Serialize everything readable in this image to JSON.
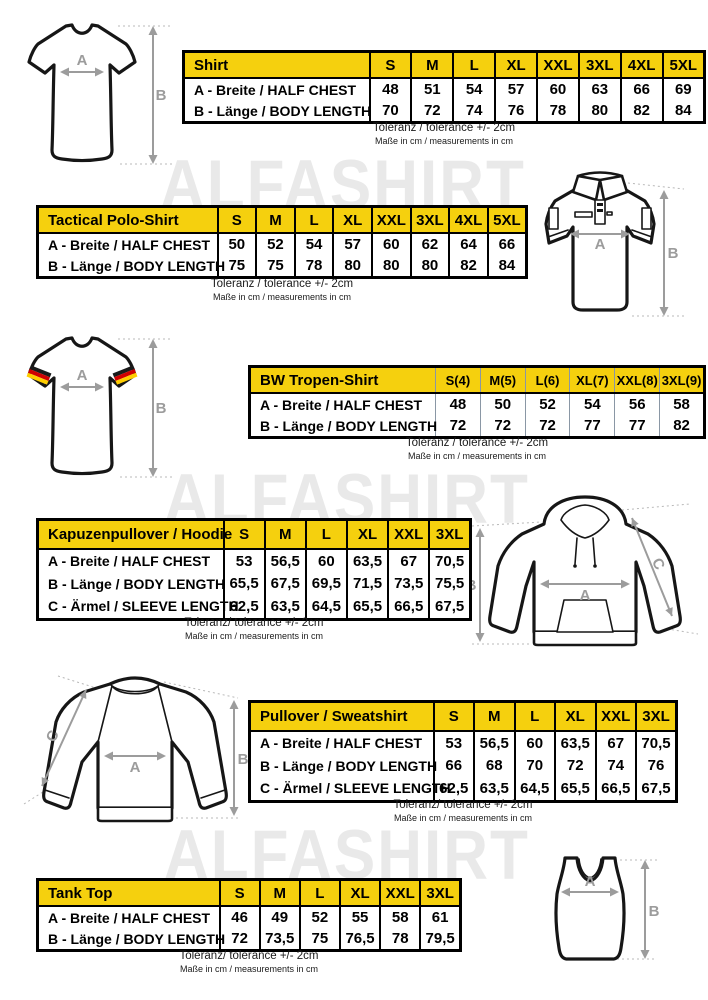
{
  "page": {
    "watermark": "ALFASHIRT"
  },
  "colors": {
    "header_yellow": "#F5D00E",
    "table_border": "#000000",
    "watermark_gray": "#E9E9E9",
    "arrow_gray": "#9C9C9C",
    "flag_black": "#1A1A1A",
    "flag_red": "#D00000",
    "flag_gold": "#FFCE00"
  },
  "tables": [
    {
      "id": "shirt",
      "title": "Shirt",
      "sizes": [
        "S",
        "M",
        "L",
        "XL",
        "XXL",
        "3XL",
        "4XL",
        "5XL"
      ],
      "rows": [
        {
          "label": "A -  Breite / HALF CHEST",
          "values": [
            "48",
            "51",
            "54",
            "57",
            "60",
            "63",
            "66",
            "69"
          ]
        },
        {
          "label": "B -  Länge / BODY LENGTH",
          "values": [
            "70",
            "72",
            "74",
            "76",
            "78",
            "80",
            "82",
            "84"
          ]
        }
      ],
      "tolerance": "Toleranz / tolerance +/- 2cm",
      "note": "Maße in cm / measurements in cm"
    },
    {
      "id": "tactical-polo-shirt",
      "title": "Tactical Polo-Shirt",
      "sizes": [
        "S",
        "M",
        "L",
        "XL",
        "XXL",
        "3XL",
        "4XL",
        "5XL"
      ],
      "rows": [
        {
          "label": "A -  Breite / HALF CHEST",
          "values": [
            "50",
            "52",
            "54",
            "57",
            "60",
            "62",
            "64",
            "66"
          ]
        },
        {
          "label": "B -  Länge / BODY LENGTH",
          "values": [
            "75",
            "75",
            "78",
            "80",
            "80",
            "80",
            "82",
            "84"
          ]
        }
      ],
      "tolerance": "Toleranz / tolerance +/- 2cm",
      "note": "Maße in cm / measurements in cm"
    },
    {
      "id": "bw-tropen-shirt",
      "title": "BW Tropen-Shirt",
      "sizes": [
        "S(4)",
        "M(5)",
        "L(6)",
        "XL(7)",
        "XXL(8)",
        "3XL(9)"
      ],
      "rows": [
        {
          "label": "A -  Breite / HALF CHEST",
          "values": [
            "48",
            "50",
            "52",
            "54",
            "56",
            "58"
          ]
        },
        {
          "label": "B -  Länge / BODY LENGTH",
          "values": [
            "72",
            "72",
            "72",
            "77",
            "77",
            "82"
          ]
        }
      ],
      "tolerance": "Toleranz / tolerance +/- 2cm",
      "note": "Maße in cm / measurements in cm"
    },
    {
      "id": "kapuzenpullover-hoodie",
      "title": "Kapuzenpullover / Hoodie",
      "sizes": [
        "S",
        "M",
        "L",
        "XL",
        "XXL",
        "3XL"
      ],
      "rows": [
        {
          "label": "A -  Breite / HALF CHEST",
          "values": [
            "53",
            "56,5",
            "60",
            "63,5",
            "67",
            "70,5"
          ]
        },
        {
          "label": "B -  Länge / BODY LENGTH",
          "values": [
            "65,5",
            "67,5",
            "69,5",
            "71,5",
            "73,5",
            "75,5"
          ]
        },
        {
          "label": "C -  Ärmel / SLEEVE LENGTH",
          "values": [
            "62,5",
            "63,5",
            "64,5",
            "65,5",
            "66,5",
            "67,5"
          ]
        }
      ],
      "tolerance": "Toleranz/ tolerance +/- 2cm",
      "note": "Maße in cm / measurements in cm"
    },
    {
      "id": "pullover-sweatshirt",
      "title": "Pullover / Sweatshirt",
      "sizes": [
        "S",
        "M",
        "L",
        "XL",
        "XXL",
        "3XL"
      ],
      "rows": [
        {
          "label": "A -  Breite / HALF CHEST",
          "values": [
            "53",
            "56,5",
            "60",
            "63,5",
            "67",
            "70,5"
          ]
        },
        {
          "label": "B -  Länge / BODY LENGTH",
          "values": [
            "66",
            "68",
            "70",
            "72",
            "74",
            "76"
          ]
        },
        {
          "label": "C -  Ärmel / SLEEVE LENGTH",
          "values": [
            "62,5",
            "63,5",
            "64,5",
            "65,5",
            "66,5",
            "67,5"
          ]
        }
      ],
      "tolerance": "Toleranz/ tolerance +/- 2cm",
      "note": "Maße in cm / measurements in cm"
    },
    {
      "id": "tank-top",
      "title": "Tank Top",
      "sizes": [
        "S",
        "M",
        "L",
        "XL",
        "XXL",
        "3XL"
      ],
      "rows": [
        {
          "label": "A -  Breite / HALF CHEST",
          "values": [
            "46",
            "49",
            "52",
            "55",
            "58",
            "61"
          ]
        },
        {
          "label": "B -  Länge / BODY LENGTH",
          "values": [
            "72",
            "73,5",
            "75",
            "76,5",
            "78",
            "79,5"
          ]
        }
      ],
      "tolerance": "Toleranz/ tolerance +/- 2cm",
      "note": "Maße in cm / measurements in cm"
    }
  ],
  "diagrams": {
    "tshirt": {
      "a": "A",
      "b": "B"
    },
    "polo": {
      "a": "A",
      "b": "B"
    },
    "tropen": {
      "a": "A",
      "b": "B"
    },
    "hoodie": {
      "a": "A",
      "b": "B",
      "c": "C"
    },
    "sweatshirt": {
      "a": "A",
      "b": "B",
      "c": "C"
    },
    "tanktop": {
      "a": "A",
      "b": "B"
    }
  }
}
